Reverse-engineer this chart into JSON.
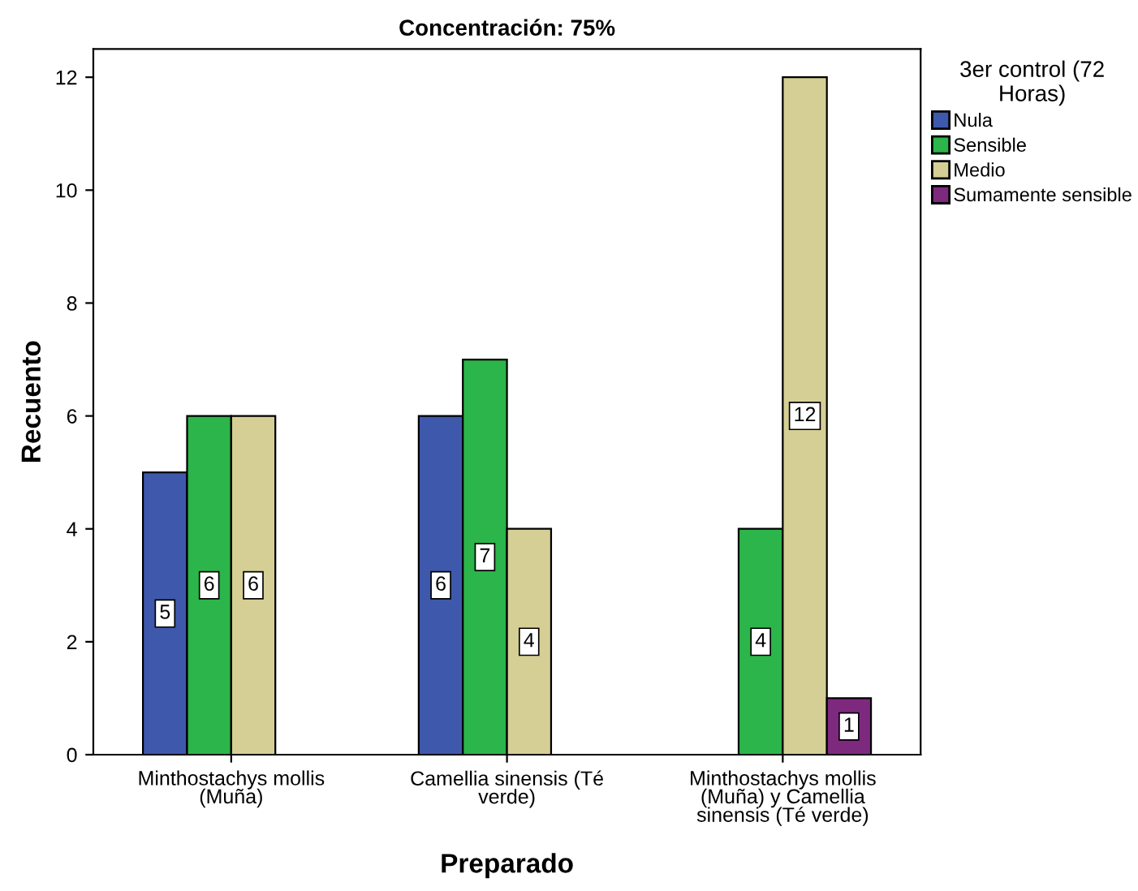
{
  "chart_data": {
    "type": "bar",
    "title": "Concentración: 75%",
    "xlabel": "Preparado",
    "ylabel": "Recuento",
    "legend_title": "3er control (72 Horas)",
    "categories": [
      "Minthostachys mollis (Muña)",
      "Camellia sinensis (Té verde)",
      "Minthostachys mollis (Muña) y Camellia sinensis (Té verde)"
    ],
    "series": [
      {
        "name": "Nula",
        "color": "#3e58ac",
        "values": [
          5,
          6,
          null
        ]
      },
      {
        "name": "Sensible",
        "color": "#2bb54a",
        "values": [
          6,
          7,
          4
        ]
      },
      {
        "name": "Medio",
        "color": "#d5cf96",
        "values": [
          6,
          4,
          12
        ]
      },
      {
        "name": "Sumamente sensible",
        "color": "#7d2a7e",
        "values": [
          null,
          null,
          1
        ]
      }
    ],
    "ylim": [
      0,
      12.5
    ],
    "yticks": [
      0,
      2,
      4,
      6,
      8,
      10,
      12
    ],
    "grid": false,
    "legend": "top right",
    "data_labels": true
  }
}
